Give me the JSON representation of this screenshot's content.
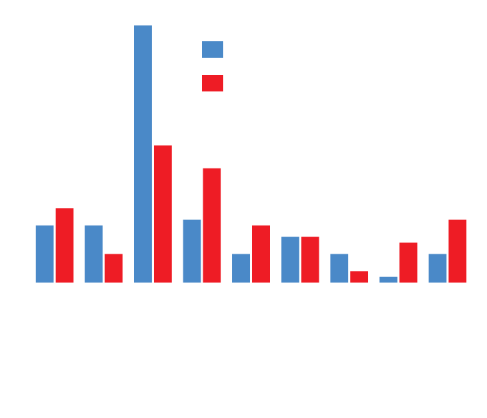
{
  "colors": {
    "background": "#ffffff",
    "series_a": "#4a89c8",
    "series_b": "#ee1c25"
  },
  "chart_data": {
    "type": "bar",
    "title": "",
    "xlabel": "",
    "ylabel": "",
    "categories": [
      "",
      "",
      "",
      "",
      "",
      "",
      "",
      "",
      ""
    ],
    "series": [
      {
        "values": [
          10,
          10,
          45,
          11,
          5,
          8,
          5,
          1,
          5
        ]
      },
      {
        "values": [
          13,
          5,
          24,
          20,
          10,
          8,
          2,
          7,
          11
        ]
      }
    ],
    "ylim": [
      0,
      45
    ],
    "grid": false,
    "legend": {
      "position": "top-center",
      "entries": [
        "",
        ""
      ]
    }
  }
}
